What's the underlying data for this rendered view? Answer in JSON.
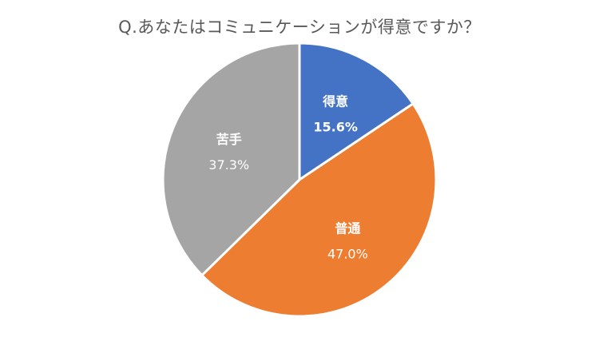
{
  "chart_data": {
    "type": "pie",
    "title": "Q.あなたはコミュニケーションが得意ですか？",
    "categories": [
      "得意",
      "普通",
      "苦手"
    ],
    "values": [
      15.6,
      47.0,
      37.3
    ],
    "value_labels": [
      "15.6%",
      "47.0%",
      "37.3%"
    ],
    "colors": [
      "#4472c4",
      "#ed7d31",
      "#a5a5a5"
    ],
    "start_angle": "12 o'clock",
    "direction": "clockwise",
    "legend": "none",
    "data_labels": "inside slices"
  }
}
